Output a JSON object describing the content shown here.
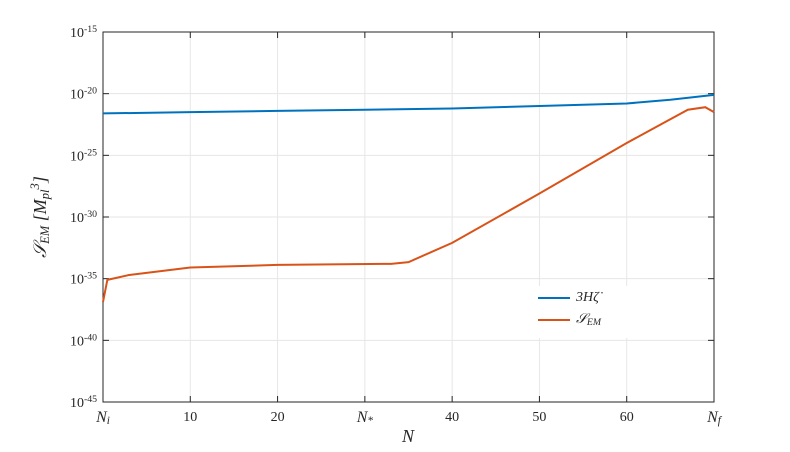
{
  "chart_data": {
    "type": "line",
    "log_y": true,
    "grid": true,
    "legend": "right",
    "xlabel": "N",
    "ylabel": "𝒮_EM [M_pl^3]",
    "xlim": [
      0,
      70
    ],
    "xticks": [
      {
        "value": 0,
        "label": "N_i"
      },
      10,
      20,
      {
        "value": 30,
        "label": "N_*"
      },
      40,
      50,
      60,
      {
        "value": 70,
        "label": "N_f"
      }
    ],
    "ylim": [
      1e-45,
      1e-15
    ],
    "yticks": [
      {
        "value": 1e-45,
        "label": "10^-45"
      },
      {
        "value": 1e-40,
        "label": "10^-40"
      },
      {
        "value": 1e-35,
        "label": "10^-35"
      },
      {
        "value": 1e-30,
        "label": "10^-30"
      },
      {
        "value": 1e-25,
        "label": "10^-25"
      },
      {
        "value": 1e-20,
        "label": "10^-20"
      },
      {
        "value": 1e-15,
        "label": "10^-15"
      }
    ],
    "series": [
      {
        "name": "3Hζ̇",
        "color": "#0072bd",
        "x": [
          0,
          10,
          20,
          30,
          40,
          50,
          60,
          65,
          70
        ],
        "values": [
          2.5e-22,
          3.2e-22,
          4e-22,
          5e-22,
          6.3e-22,
          1e-21,
          1.6e-21,
          3.2e-21,
          8e-21
        ]
      },
      {
        "name": "𝒮_EM",
        "color": "#d95319",
        "x": [
          0,
          0.5,
          3,
          10,
          20,
          33,
          35,
          40,
          50,
          60,
          67,
          69,
          70
        ],
        "values": [
          1.3e-37,
          8e-36,
          2e-35,
          8e-35,
          1.3e-34,
          1.6e-34,
          2.2e-34,
          8e-33,
          8e-29,
          1e-24,
          5e-22,
          8e-22,
          3.2e-22
        ]
      }
    ]
  }
}
